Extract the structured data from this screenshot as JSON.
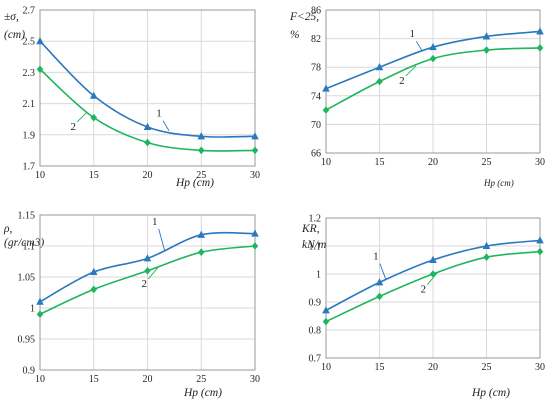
{
  "colors": {
    "series1": "#2a78c0",
    "series2": "#1fb55e",
    "grid": "#d9d9d9",
    "axis": "#9a9a9a"
  },
  "chart_data": [
    {
      "type": "line",
      "title": "",
      "ylabel_lines": [
        "±σ,",
        "(cm)"
      ],
      "xlabel": "Hp (cm)",
      "x": [
        10,
        15,
        20,
        25,
        30
      ],
      "ylim": [
        1.7,
        2.7
      ],
      "yticks": [
        "1.7",
        "1.9",
        "2.1",
        "2.3",
        "2.5",
        "2.7"
      ],
      "grid": true,
      "series": [
        {
          "marker": "triangle",
          "label": "1",
          "values": [
            2.5,
            2.15,
            1.95,
            1.89,
            1.89
          ]
        },
        {
          "marker": "diamond",
          "label": "2",
          "values": [
            2.32,
            2.01,
            1.85,
            1.8,
            1.8
          ]
        }
      ]
    },
    {
      "type": "line",
      "title": "",
      "ylabel_lines": [
        "F<25,",
        "%"
      ],
      "xlabel": "Hp (cm)",
      "x": [
        10,
        15,
        20,
        25,
        30
      ],
      "ylim": [
        66,
        86
      ],
      "yticks": [
        "66",
        "70",
        "74",
        "78",
        "82",
        "86"
      ],
      "grid": true,
      "series": [
        {
          "marker": "triangle",
          "label": "1",
          "values": [
            75,
            78,
            80.8,
            82.3,
            83
          ]
        },
        {
          "marker": "diamond",
          "label": "2",
          "values": [
            72,
            76,
            79.2,
            80.4,
            80.7
          ]
        }
      ]
    },
    {
      "type": "line",
      "title": "",
      "ylabel_lines": [
        "ρ,",
        "(gr/cm3)"
      ],
      "xlabel": "Hp (cm)",
      "x": [
        10,
        15,
        20,
        25,
        30
      ],
      "ylim": [
        0.9,
        1.15
      ],
      "yticks": [
        "0.9",
        "0.95",
        "1",
        "1.05",
        "1.1",
        "1.15"
      ],
      "grid": true,
      "series": [
        {
          "marker": "triangle",
          "label": "1",
          "values": [
            1.01,
            1.058,
            1.08,
            1.118,
            1.12
          ]
        },
        {
          "marker": "diamond",
          "label": "2",
          "values": [
            0.99,
            1.03,
            1.06,
            1.09,
            1.1
          ]
        }
      ]
    },
    {
      "type": "line",
      "title": "",
      "ylabel_lines": [
        "KR,",
        "kN/m"
      ],
      "xlabel": "Hp (cm)",
      "x": [
        10,
        15,
        20,
        25,
        30
      ],
      "ylim": [
        0.7,
        1.2
      ],
      "yticks": [
        "0.7",
        "0.8",
        "0.9",
        "1",
        "1.1",
        "1.2"
      ],
      "grid": true,
      "series": [
        {
          "marker": "triangle",
          "label": "1",
          "values": [
            0.87,
            0.97,
            1.05,
            1.1,
            1.12
          ]
        },
        {
          "marker": "diamond",
          "label": "2",
          "values": [
            0.83,
            0.92,
            1.0,
            1.06,
            1.08
          ]
        }
      ]
    }
  ]
}
